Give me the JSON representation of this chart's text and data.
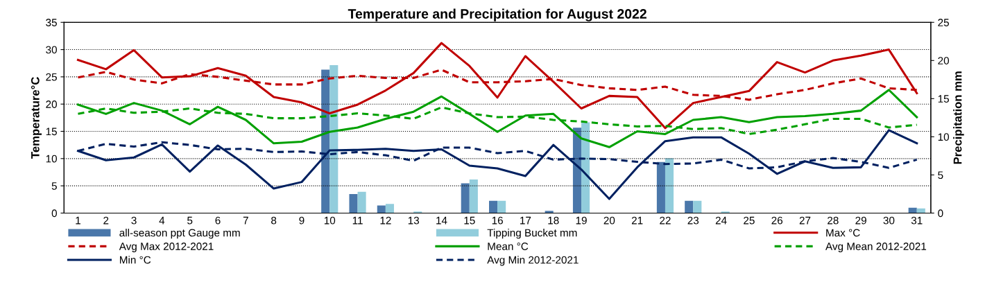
{
  "chart_data": {
    "type": "line",
    "title": "Temperature and Precipitation for August 2022",
    "ylabel": "Temperature°C",
    "y2label": "Precipitation mm",
    "categories": [
      "1",
      "2",
      "3",
      "4",
      "5",
      "6",
      "7",
      "8",
      "9",
      "10",
      "11",
      "12",
      "13",
      "14",
      "15",
      "16",
      "17",
      "18",
      "19",
      "20",
      "21",
      "22",
      "23",
      "24",
      "25",
      "26",
      "27",
      "28",
      "29",
      "30",
      "31"
    ],
    "ylim": [
      0,
      35
    ],
    "yticks": [
      0,
      5,
      10,
      15,
      20,
      25,
      30,
      35
    ],
    "y2lim": [
      0,
      25
    ],
    "y2ticks": [
      0,
      5,
      10,
      15,
      20,
      25
    ],
    "grid": "y",
    "legend": "bottom",
    "series": [
      {
        "name": "all-season ppt Gauge mm",
        "type": "bar",
        "axis": "y2",
        "color": "#4a77aa",
        "values": [
          0,
          0,
          0,
          0,
          0,
          0,
          0,
          0,
          0,
          18.8,
          2.5,
          1,
          0,
          0,
          3.9,
          1.6,
          0,
          0.3,
          11.2,
          0,
          0,
          6.7,
          1.6,
          0,
          0,
          0,
          0,
          0,
          0,
          0,
          0.7
        ]
      },
      {
        "name": "Tipping Bucket mm",
        "type": "bar",
        "axis": "y2",
        "color": "#92cddc",
        "values": [
          0,
          0,
          0,
          0,
          0,
          0,
          0,
          0,
          0,
          19.4,
          2.8,
          1.2,
          0.2,
          0,
          4.4,
          1.6,
          0,
          0,
          11.9,
          0,
          0,
          7.2,
          1.6,
          0.2,
          0,
          0,
          0,
          0,
          0,
          0,
          0.6
        ]
      },
      {
        "name": "Max °C",
        "line_style": "solid",
        "color": "#c00000",
        "values": [
          28.1,
          26.4,
          29.9,
          24.9,
          25.1,
          26.6,
          25.2,
          21.3,
          20.3,
          18.3,
          19.9,
          22.5,
          25.7,
          31.2,
          27,
          21.2,
          28.8,
          24.1,
          19.2,
          21.5,
          21.3,
          15.6,
          20.2,
          21.3,
          22.4,
          27.7,
          25.8,
          28,
          28.9,
          30,
          22
        ]
      },
      {
        "name": "Avg Max 2012-2021",
        "line_style": "dashed",
        "color": "#c00000",
        "values": [
          24.9,
          25.9,
          24.5,
          23.8,
          25.5,
          25,
          24.3,
          23.6,
          23.6,
          24.7,
          25.2,
          24.8,
          24.8,
          26.3,
          24,
          24,
          24.2,
          24.6,
          23.5,
          22.9,
          22.6,
          23.2,
          21.7,
          21.5,
          20.8,
          21.8,
          22.6,
          23.8,
          24.7,
          22.9,
          22.6
        ]
      },
      {
        "name": "Mean °C",
        "line_style": "solid",
        "color": "#00a000",
        "values": [
          19.9,
          18.2,
          20.2,
          18.8,
          16.3,
          19.5,
          17.1,
          12.8,
          13.1,
          14.9,
          15.7,
          17.3,
          18.6,
          21.4,
          18.2,
          14.9,
          17.9,
          18.2,
          13.7,
          12.1,
          15,
          14.5,
          17.1,
          17.6,
          16.7,
          17.6,
          17.8,
          18.2,
          18.8,
          22.6,
          17.6
        ]
      },
      {
        "name": "Avg Mean 2012-2021",
        "line_style": "dashed",
        "color": "#00a000",
        "values": [
          18.2,
          19.2,
          18.4,
          18.6,
          19.2,
          18.4,
          18.2,
          17.4,
          17.4,
          17.8,
          18.3,
          17.9,
          17.3,
          19.4,
          18.3,
          17.6,
          17.7,
          17.1,
          16.8,
          16.3,
          15.9,
          16,
          15.4,
          15.6,
          14.5,
          15.3,
          16.3,
          17.3,
          17.3,
          15.7,
          16.2
        ]
      },
      {
        "name": "Min °C",
        "line_style": "solid",
        "color": "#002060",
        "values": [
          11.4,
          9.7,
          10.2,
          12.6,
          7.6,
          12.4,
          8.9,
          4.5,
          5.7,
          11.5,
          11.6,
          11.8,
          11.4,
          11.7,
          8.7,
          8.2,
          6.8,
          12.5,
          8,
          2.6,
          8.4,
          13.2,
          13.9,
          13.9,
          10.9,
          7.2,
          9.5,
          8.3,
          8.4,
          15.2,
          12.8
        ]
      },
      {
        "name": "Avg Min 2012-2021",
        "line_style": "dashed",
        "color": "#002060",
        "values": [
          11.4,
          12.7,
          12.2,
          13,
          12.5,
          11.7,
          11.8,
          11.2,
          11.3,
          10.8,
          11.2,
          10.6,
          9.6,
          12,
          12,
          11,
          11.4,
          9.8,
          10,
          9.9,
          9.4,
          9,
          9.1,
          9.8,
          8.2,
          8.4,
          9.5,
          10.1,
          9.4,
          8.3,
          9.8
        ]
      }
    ]
  }
}
